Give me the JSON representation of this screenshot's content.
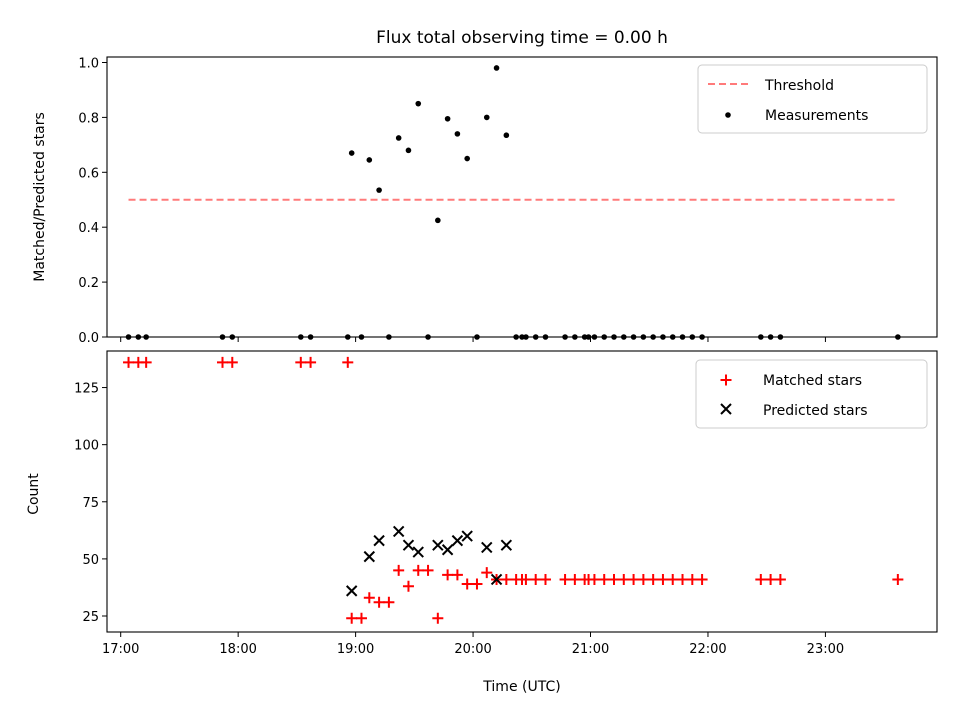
{
  "chart_data": [
    {
      "type": "scatter",
      "title": "Flux total observing time = 0.00 h",
      "xlabel": "",
      "ylabel": "Matched/Predicted stars",
      "ylim": [
        0,
        1.02
      ],
      "xlim": [
        "16:53",
        "23:57"
      ],
      "yticks": [
        "0.0",
        "0.2",
        "0.4",
        "0.6",
        "0.8",
        "1.0"
      ],
      "grid": false,
      "legend_position": "top-right",
      "threshold": {
        "name": "Threshold",
        "y": 0.5,
        "x": [
          "17:04",
          "23:37"
        ],
        "color": "#ff7a7a"
      },
      "series": [
        {
          "name": "Measurements",
          "color": "#000000",
          "x": [
            "17:04",
            "17:09",
            "17:13",
            "17:52",
            "17:57",
            "18:32",
            "18:37",
            "18:56",
            "18:58",
            "19:03",
            "19:07",
            "19:12",
            "19:17",
            "19:22",
            "19:27",
            "19:32",
            "19:37",
            "19:42",
            "19:47",
            "19:52",
            "19:57",
            "20:02",
            "20:07",
            "20:12",
            "20:17",
            "20:22",
            "20:25",
            "20:27",
            "20:32",
            "20:37",
            "20:47",
            "20:52",
            "20:57",
            "20:59",
            "21:02",
            "21:07",
            "21:12",
            "21:17",
            "21:22",
            "21:27",
            "21:32",
            "21:37",
            "21:42",
            "21:47",
            "21:52",
            "21:57",
            "22:27",
            "22:32",
            "22:37",
            "23:37"
          ],
          "y": [
            0,
            0,
            0,
            0,
            0,
            0,
            0,
            0,
            0.67,
            0,
            0.645,
            0.535,
            0,
            0.725,
            0.68,
            0.85,
            0,
            0.425,
            0.795,
            0.74,
            0.65,
            0,
            0.8,
            0.98,
            0.735,
            0,
            0,
            0,
            0,
            0,
            0,
            0,
            0,
            0,
            0,
            0,
            0,
            0,
            0,
            0,
            0,
            0,
            0,
            0,
            0,
            0,
            0,
            0,
            0,
            0
          ]
        }
      ]
    },
    {
      "type": "scatter",
      "title": "",
      "xlabel": "Time (UTC)",
      "ylabel": "Count",
      "ylim": [
        18,
        141
      ],
      "xlim": [
        "16:53",
        "23:57"
      ],
      "xticks": [
        "17:00",
        "18:00",
        "19:00",
        "20:00",
        "21:00",
        "22:00",
        "23:00"
      ],
      "yticks": [
        "25",
        "50",
        "75",
        "100",
        "125"
      ],
      "grid": false,
      "legend_position": "top-right",
      "series": [
        {
          "name": "Matched stars",
          "marker": "+",
          "color": "#ff0000",
          "x": [
            "17:04",
            "17:09",
            "17:13",
            "17:52",
            "17:57",
            "18:32",
            "18:37",
            "18:56",
            "18:58",
            "19:03",
            "19:07",
            "19:12",
            "19:17",
            "19:22",
            "19:27",
            "19:32",
            "19:37",
            "19:42",
            "19:47",
            "19:52",
            "19:57",
            "20:02",
            "20:07",
            "20:12",
            "20:17",
            "20:22",
            "20:25",
            "20:27",
            "20:32",
            "20:37",
            "20:47",
            "20:52",
            "20:57",
            "20:59",
            "21:02",
            "21:07",
            "21:12",
            "21:17",
            "21:22",
            "21:27",
            "21:32",
            "21:37",
            "21:42",
            "21:47",
            "21:52",
            "21:57",
            "22:27",
            "22:32",
            "22:37",
            "23:37"
          ],
          "y": [
            136,
            136,
            136,
            136,
            136,
            136,
            136,
            136,
            24,
            24,
            33,
            31,
            31,
            45,
            38,
            45,
            45,
            24,
            43,
            43,
            39,
            39,
            44,
            41,
            41,
            41,
            41,
            41,
            41,
            41,
            41,
            41,
            41,
            41,
            41,
            41,
            41,
            41,
            41,
            41,
            41,
            41,
            41,
            41,
            41,
            41,
            41,
            41,
            41,
            41
          ]
        },
        {
          "name": "Predicted stars",
          "marker": "x",
          "color": "#000000",
          "x": [
            "18:58",
            "19:07",
            "19:12",
            "19:22",
            "19:27",
            "19:32",
            "19:42",
            "19:47",
            "19:52",
            "19:57",
            "20:07",
            "20:12",
            "20:17"
          ],
          "y": [
            36,
            51,
            58,
            62,
            56,
            53,
            56,
            54,
            58,
            60,
            55,
            41,
            56
          ]
        }
      ]
    }
  ]
}
